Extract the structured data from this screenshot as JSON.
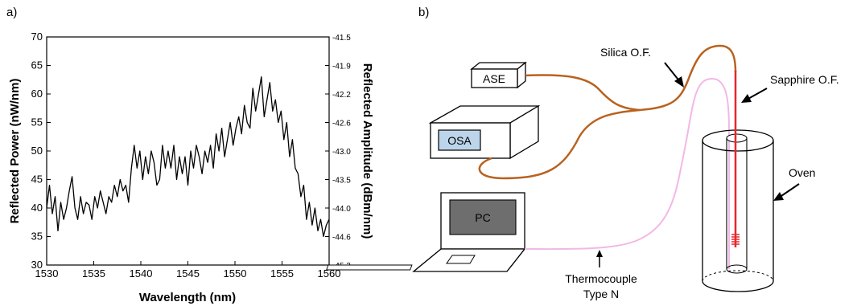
{
  "panel_a": {
    "label": "a)"
  },
  "panel_b": {
    "label": "b)",
    "labels": {
      "ase": "ASE",
      "osa": "OSA",
      "pc": "PC",
      "silica": "Silica O.F.",
      "sapphire": "Sapphire O.F.",
      "oven": "Oven",
      "thermo_line1": "Thermocouple",
      "thermo_line2": "Type N"
    },
    "colors": {
      "silica_fiber": "#b8621f",
      "sapphire_fiber": "#e8262a",
      "thermocouple": "#f2b8e6",
      "osa_screen": "#bcd5ea",
      "pc_screen": "#6e6e6e"
    }
  },
  "chart_data": {
    "type": "line",
    "xlabel": "Wavelength (nm)",
    "ylabel": "Reflected Power (nW/nm)",
    "y2label": "Reflected Amplitude (dBm/nm)",
    "xlim": [
      1530,
      1560
    ],
    "ylim": [
      30,
      70
    ],
    "xticks": [
      "1530",
      "1535",
      "1540",
      "1545",
      "1550",
      "1555",
      "1560"
    ],
    "yticks": [
      "30",
      "35",
      "40",
      "45",
      "50",
      "55",
      "60",
      "65",
      "70"
    ],
    "y2ticks": [
      "-41.5",
      "-41.9",
      "-42.2",
      "-42.6",
      "-43.0",
      "-43.5",
      "-44.0",
      "-44.6",
      "-45.2"
    ],
    "grid": false,
    "series": [
      {
        "color": "#000000",
        "x": [
          1530.0,
          1530.3,
          1530.6,
          1530.9,
          1531.2,
          1531.5,
          1531.8,
          1532.1,
          1532.4,
          1532.7,
          1533.0,
          1533.3,
          1533.6,
          1533.9,
          1534.2,
          1534.5,
          1534.8,
          1535.1,
          1535.4,
          1535.7,
          1536.0,
          1536.3,
          1536.6,
          1536.9,
          1537.2,
          1537.5,
          1537.8,
          1538.1,
          1538.4,
          1538.7,
          1539.0,
          1539.3,
          1539.6,
          1539.9,
          1540.2,
          1540.5,
          1540.8,
          1541.1,
          1541.4,
          1541.7,
          1542.0,
          1542.3,
          1542.6,
          1542.9,
          1543.2,
          1543.5,
          1543.8,
          1544.1,
          1544.4,
          1544.7,
          1545.0,
          1545.3,
          1545.6,
          1545.9,
          1546.2,
          1546.5,
          1546.8,
          1547.1,
          1547.4,
          1547.7,
          1548.0,
          1548.3,
          1548.6,
          1548.9,
          1549.2,
          1549.5,
          1549.8,
          1550.1,
          1550.4,
          1550.7,
          1551.0,
          1551.3,
          1551.6,
          1551.9,
          1552.2,
          1552.5,
          1552.8,
          1553.1,
          1553.4,
          1553.7,
          1554.0,
          1554.3,
          1554.6,
          1554.9,
          1555.2,
          1555.5,
          1555.8,
          1556.1,
          1556.4,
          1556.7,
          1557.0,
          1557.3,
          1557.6,
          1557.9,
          1558.2,
          1558.5,
          1558.8,
          1559.1,
          1559.4,
          1559.7,
          1560.0
        ],
        "values": [
          40,
          44,
          39,
          42,
          36,
          41,
          38,
          40,
          43,
          45.5,
          40,
          38,
          42,
          39,
          41,
          40.5,
          38,
          42,
          40,
          43,
          41,
          39,
          42,
          41,
          44,
          42,
          45,
          43,
          44,
          41,
          47,
          51,
          47,
          50,
          45,
          49,
          46,
          50,
          48,
          44,
          45,
          51,
          47,
          50,
          47,
          51,
          45,
          49,
          46,
          49,
          44,
          50,
          47,
          51,
          49,
          46,
          50,
          48,
          51,
          47,
          53,
          50,
          54,
          49,
          52,
          55,
          51,
          54,
          56,
          53,
          58,
          55,
          54,
          61,
          57,
          60,
          63,
          56,
          59,
          62,
          57,
          59,
          55,
          57,
          52,
          55,
          49,
          52,
          47,
          46,
          42,
          44,
          38,
          41,
          37,
          40,
          36,
          38,
          35,
          37,
          38
        ]
      }
    ]
  }
}
